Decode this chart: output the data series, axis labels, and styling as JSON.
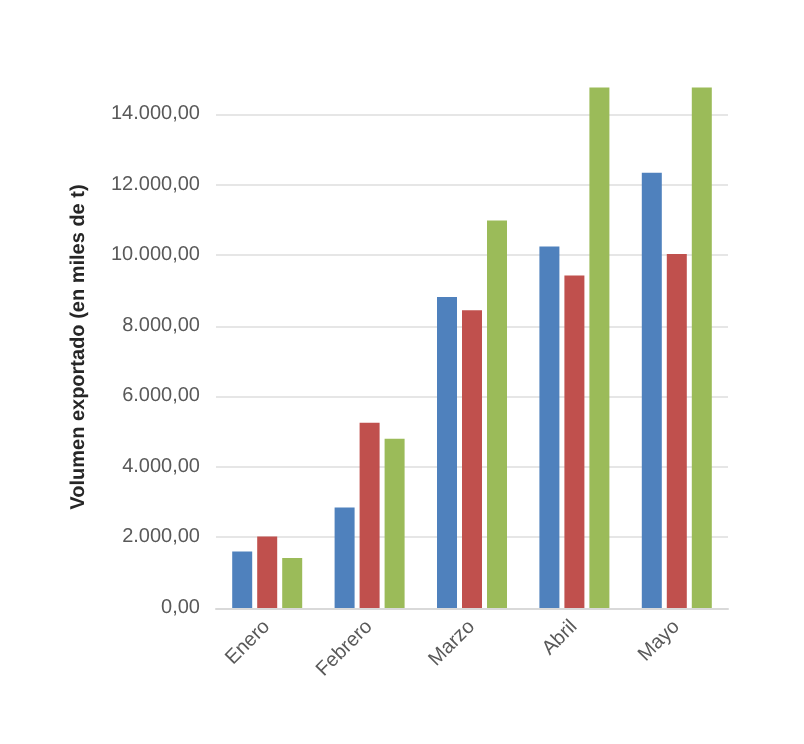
{
  "chart_data": {
    "type": "bar",
    "ylabel": "Volumen exportado (en miles de t)",
    "categories": [
      "Enero",
      "Febrero",
      "Marzo",
      "Abril",
      "Mayo"
    ],
    "series": [
      {
        "color": "#4f81bd",
        "values": [
          1600,
          2850,
          8820,
          10250,
          12340
        ]
      },
      {
        "color": "#c0504d",
        "values": [
          2030,
          5250,
          8440,
          9430,
          10040
        ]
      },
      {
        "color": "#9bbb59",
        "values": [
          1420,
          4800,
          10990,
          14760,
          14760
        ]
      }
    ],
    "ylim": [
      0,
      14800
    ],
    "yticks": [
      {
        "value": 0,
        "label": "0,00"
      },
      {
        "value": 2000,
        "label": "2.000,00"
      },
      {
        "value": 4000,
        "label": "4.000,00"
      },
      {
        "value": 6000,
        "label": "6.000,00"
      },
      {
        "value": 8000,
        "label": "8.000,00"
      },
      {
        "value": 10000,
        "label": "10.000,00"
      },
      {
        "value": 12000,
        "label": "12.000,00"
      },
      {
        "value": 14000,
        "label": "14.000,00"
      }
    ],
    "grid": true
  }
}
